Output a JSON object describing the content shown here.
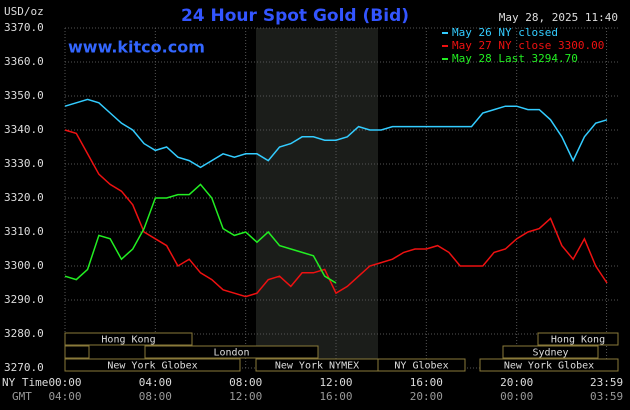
{
  "chart_data": {
    "type": "line",
    "title": "24 Hour Spot Gold (Bid)",
    "ylabel": "USD/oz",
    "timestamp": "May 28, 2025 11:40",
    "watermark": "www.kitco.com",
    "xlabel": "NY Time",
    "x2label": "GMT",
    "x": [
      0,
      0.5,
      1,
      1.5,
      2,
      2.5,
      3,
      3.5,
      4,
      4.5,
      5,
      5.5,
      6,
      6.5,
      7,
      7.5,
      8,
      8.5,
      9,
      9.5,
      10,
      10.5,
      11,
      11.5,
      12,
      12.5,
      13,
      13.5,
      14,
      14.5,
      15,
      15.5,
      16,
      16.5,
      17,
      17.5,
      18,
      18.5,
      19,
      19.5,
      20,
      20.5,
      21,
      21.5,
      22,
      22.5,
      23,
      23.5,
      24
    ],
    "series": [
      {
        "name": "May 26 NY closed",
        "color": "#33ccff",
        "values": [
          3347,
          3348,
          3349,
          3348,
          3345,
          3342,
          3340,
          3336,
          3334,
          3335,
          3332,
          3331,
          3329,
          3331,
          3333,
          3332,
          3333,
          3333,
          3331,
          3335,
          3336,
          3338,
          3338,
          3337,
          3337,
          3338,
          3341,
          3340,
          3340,
          3341,
          3341,
          3341,
          3341,
          3341,
          3341,
          3341,
          3341,
          3345,
          3346,
          3347,
          3347,
          3346,
          3346,
          3343,
          3338,
          3331,
          3338,
          3342,
          3343
        ]
      },
      {
        "name": "May 27 NY close 3300.00",
        "color": "#ee1111",
        "values": [
          3340,
          3339,
          3333,
          3327,
          3324,
          3322,
          3318,
          3310,
          3308,
          3306,
          3300,
          3302,
          3298,
          3296,
          3293,
          3292,
          3291,
          3292,
          3296,
          3297,
          3294,
          3298,
          3298,
          3299,
          3292,
          3294,
          3297,
          3300,
          3301,
          3302,
          3304,
          3305,
          3305,
          3306,
          3304,
          3300,
          3300,
          3300,
          3304,
          3305,
          3308,
          3310,
          3311,
          3314,
          3306,
          3302,
          3308,
          3300,
          3295
        ]
      },
      {
        "name": "May 28 Last 3294.70",
        "color": "#22ee22",
        "values": [
          3297,
          3296,
          3299,
          3309,
          3308,
          3302,
          3305,
          3311,
          3320,
          3320,
          3321,
          3321,
          3324,
          3320,
          3311,
          3309,
          3310,
          3307,
          3310,
          3306,
          3305,
          3304,
          3303,
          3297,
          3295,
          null,
          null,
          null,
          null,
          null,
          null,
          null,
          null,
          null,
          null,
          null,
          null,
          null,
          null,
          null,
          null,
          null,
          null,
          null,
          null,
          null,
          null,
          null,
          null
        ]
      }
    ],
    "xlim": [
      0,
      24
    ],
    "xticks": [
      {
        "value": 0,
        "label": "00:00"
      },
      {
        "value": 4,
        "label": "04:00"
      },
      {
        "value": 8,
        "label": "08:00"
      },
      {
        "value": 12,
        "label": "12:00"
      },
      {
        "value": 16,
        "label": "16:00"
      },
      {
        "value": 20,
        "label": "20:00"
      },
      {
        "value": 23.98,
        "label": "23:59"
      }
    ],
    "gmt_labels": [
      "04:00",
      "08:00",
      "12:00",
      "16:00",
      "20:00",
      "00:00",
      "03:59"
    ],
    "ylim": [
      3270,
      3370
    ],
    "yticks": [
      {
        "value": 3270,
        "label": "3270.0"
      },
      {
        "value": 3280,
        "label": "3280.0"
      },
      {
        "value": 3290,
        "label": "3290.0"
      },
      {
        "value": 3300,
        "label": "3300.0"
      },
      {
        "value": 3310,
        "label": "3310.0"
      },
      {
        "value": 3320,
        "label": "3320.0"
      },
      {
        "value": 3330,
        "label": "3330.0"
      },
      {
        "value": 3340,
        "label": "3340.0"
      },
      {
        "value": 3350,
        "label": "3350.0"
      },
      {
        "value": 3360,
        "label": "3360.0"
      },
      {
        "value": 3370,
        "label": "3370.0"
      }
    ],
    "grid": true,
    "sessions": [
      "Hong Kong",
      "London",
      "New York Globex",
      "New York NYMEX",
      "NY Globex",
      "Hong Kong",
      "Sydney",
      "New York Globex"
    ]
  }
}
